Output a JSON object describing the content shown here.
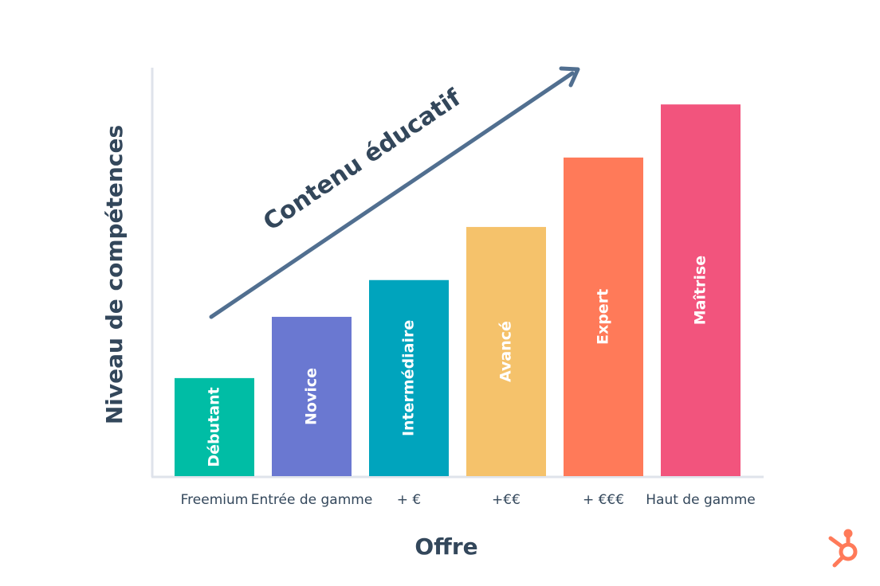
{
  "chart_data": {
    "type": "bar",
    "annotation": "Contenu éducatif",
    "x_label": "Offre",
    "y_label": "Niveau de compétences",
    "categories": [
      "Freemium",
      "Entrée de gamme",
      "+ €",
      "+€€",
      "+ €€€",
      "Haut de gamme"
    ],
    "bar_labels": [
      "Débutant",
      "Novice",
      "Intermédiaire",
      "Avancé",
      "Expert",
      "Maîtrise"
    ],
    "values": [
      24,
      39,
      48,
      61,
      78,
      91
    ],
    "colors": [
      "#00bda5",
      "#6a78d1",
      "#00a4bd",
      "#f5c26b",
      "#ff7a59",
      "#f2547d"
    ],
    "ylim": [
      0,
      100
    ]
  }
}
